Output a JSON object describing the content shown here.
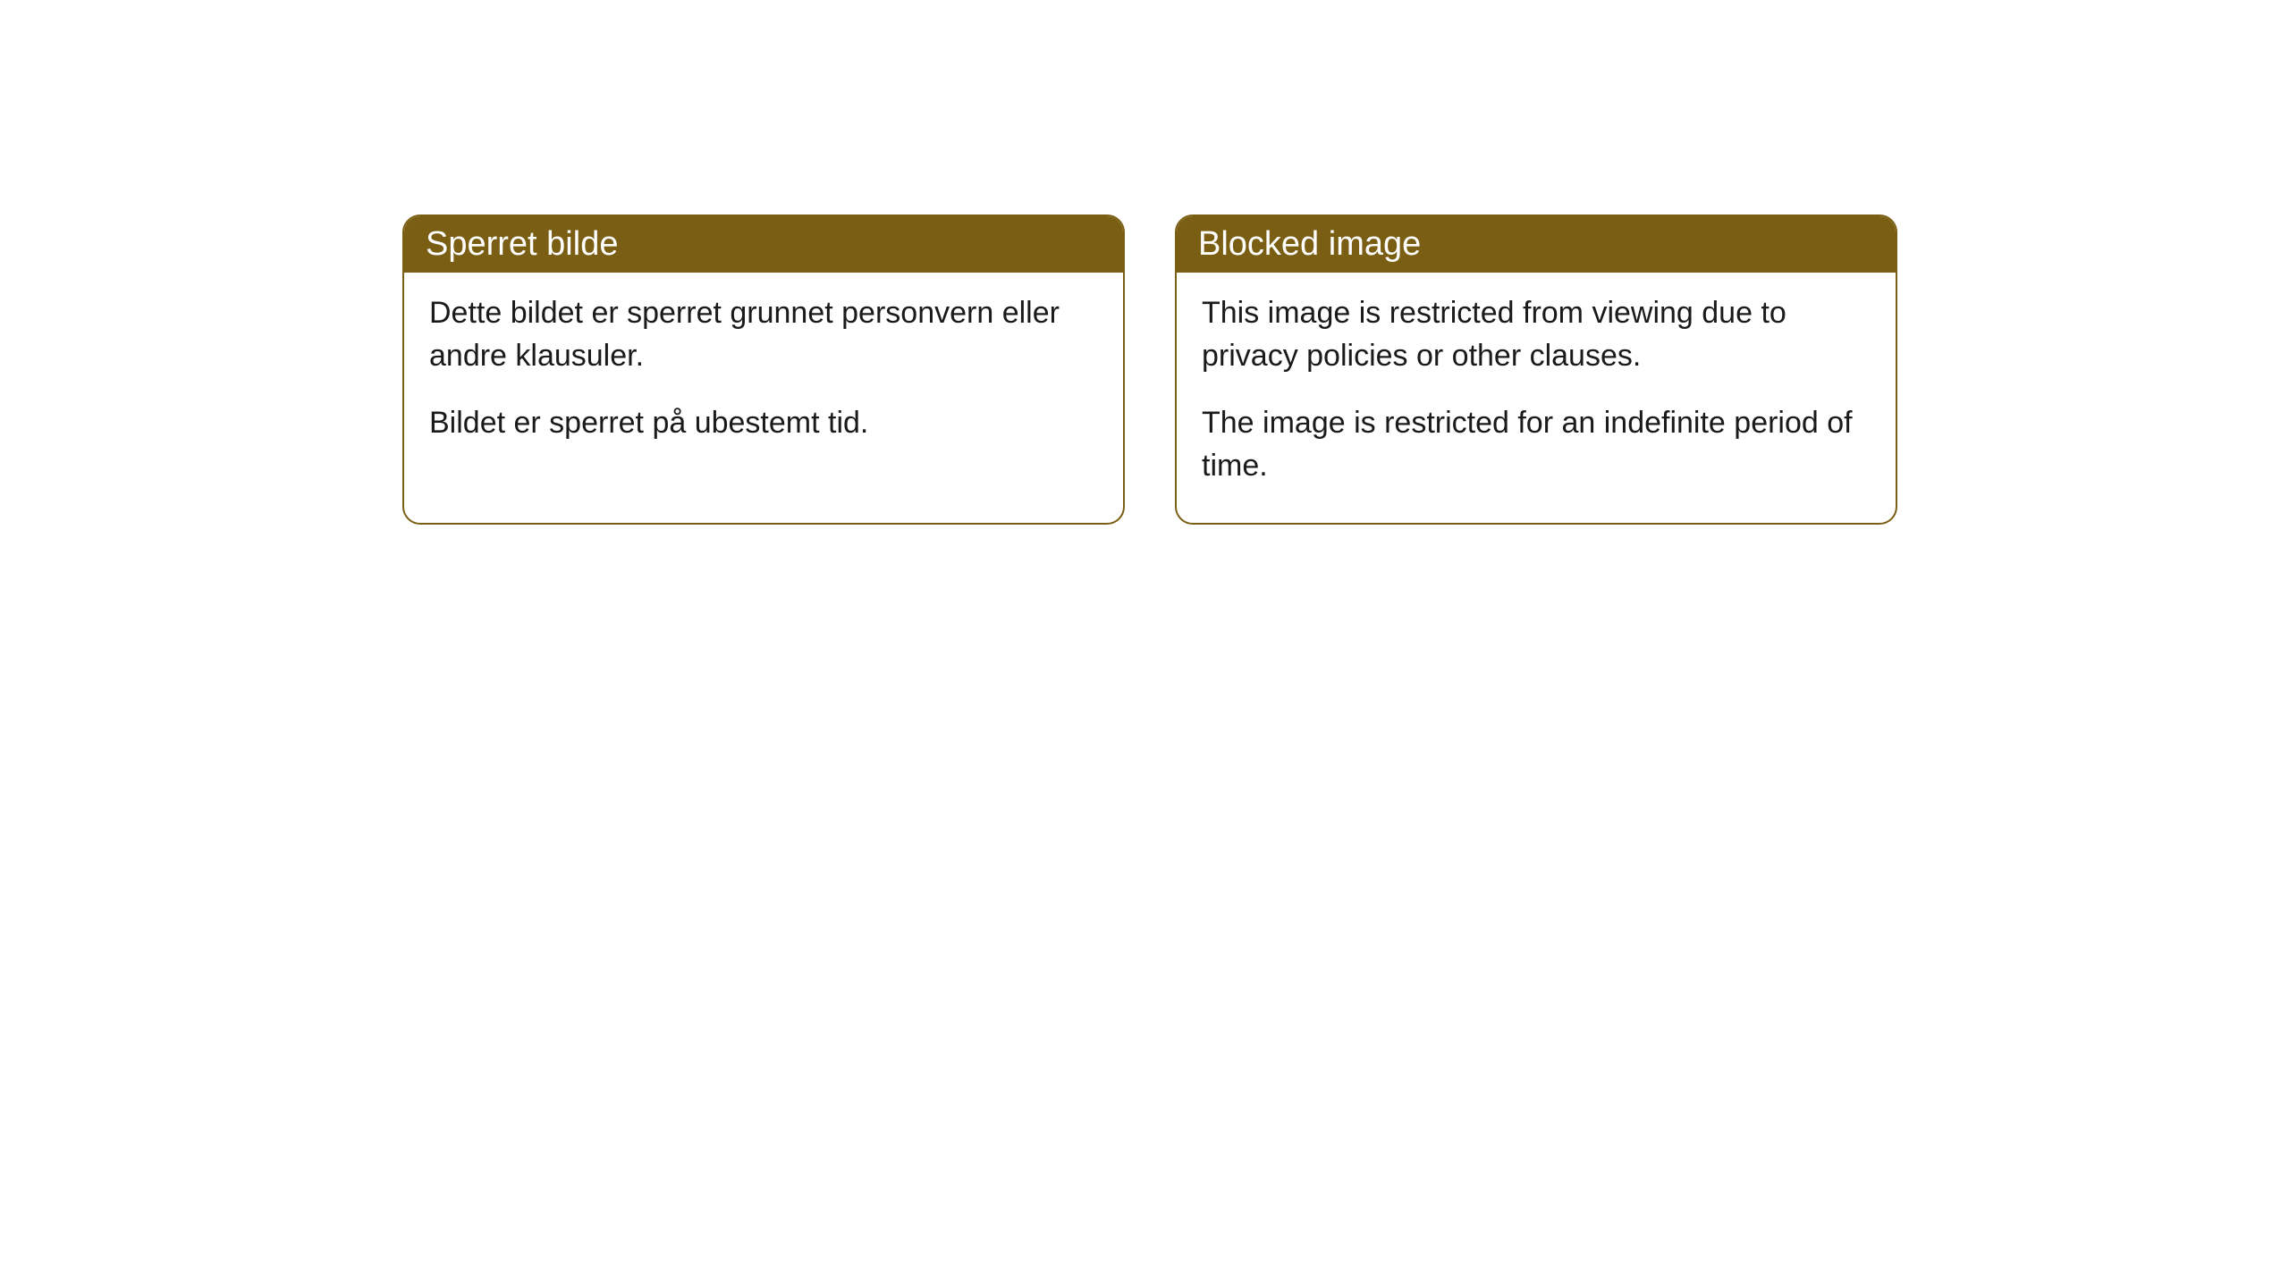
{
  "cards": [
    {
      "title": "Sperret bilde",
      "paragraph1": "Dette bildet er sperret grunnet personvern eller andre klausuler.",
      "paragraph2": "Bildet er sperret på ubestemt tid."
    },
    {
      "title": "Blocked image",
      "paragraph1": "This image is restricted from viewing due to privacy policies or other clauses.",
      "paragraph2": "The image is restricted for an indefinite period of time."
    }
  ],
  "style": {
    "header_bg": "#7a5e13",
    "header_text_color": "#ffffff",
    "border_color": "#7a5e13",
    "body_bg": "#ffffff",
    "body_text_color": "#1a1a1a",
    "border_radius": 20,
    "title_fontsize": 38,
    "body_fontsize": 34
  }
}
